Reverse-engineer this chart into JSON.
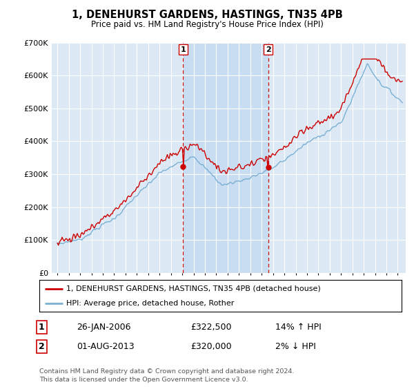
{
  "title": "1, DENEHURST GARDENS, HASTINGS, TN35 4PB",
  "subtitle": "Price paid vs. HM Land Registry's House Price Index (HPI)",
  "background_color": "#ffffff",
  "plot_background": "#dce9f5",
  "shade_color": "#c0d8f0",
  "legend_label_red": "1, DENEHURST GARDENS, HASTINGS, TN35 4PB (detached house)",
  "legend_label_blue": "HPI: Average price, detached house, Rother",
  "annotation1_date": "26-JAN-2006",
  "annotation1_price": "£322,500",
  "annotation1_hpi": "14% ↑ HPI",
  "annotation2_date": "01-AUG-2013",
  "annotation2_price": "£320,000",
  "annotation2_hpi": "2% ↓ HPI",
  "footnote": "Contains HM Land Registry data © Crown copyright and database right 2024.\nThis data is licensed under the Open Government Licence v3.0.",
  "red_color": "#cc0000",
  "blue_color": "#7ab0d4",
  "vline_color": "#cc0000",
  "ylim": [
    0,
    700000
  ],
  "yticks": [
    0,
    100000,
    200000,
    300000,
    400000,
    500000,
    600000,
    700000
  ],
  "ytick_labels": [
    "£0",
    "£100K",
    "£200K",
    "£300K",
    "£400K",
    "£500K",
    "£600K",
    "£700K"
  ],
  "sale1_x": 2006.07,
  "sale1_y": 322500,
  "sale2_x": 2013.58,
  "sale2_y": 320000,
  "vline1_x": 2006.07,
  "vline2_x": 2013.58,
  "xmin": 1994.5,
  "xmax": 2025.7
}
